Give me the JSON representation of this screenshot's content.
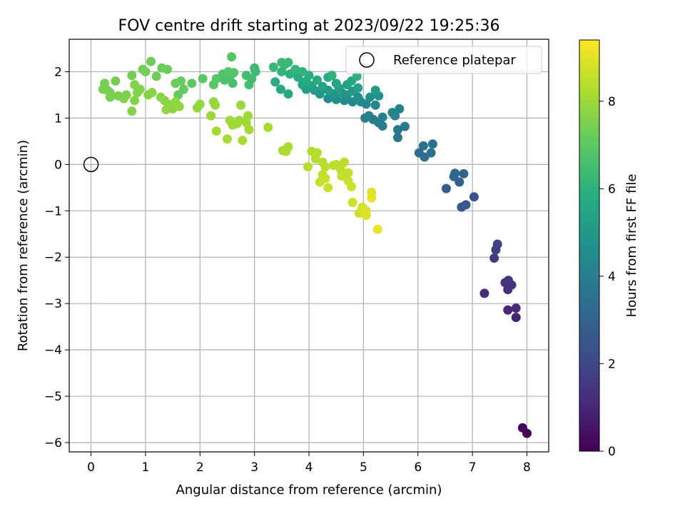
{
  "chart_data": {
    "type": "scatter",
    "title": "FOV centre drift starting at 2023/09/22 19:25:36",
    "xlabel": "Angular distance from reference (arcmin)",
    "ylabel": "Rotation from reference (arcmin)",
    "xlim": [
      -0.4,
      8.4
    ],
    "ylim": [
      -6.2,
      2.7
    ],
    "xticks": [
      0,
      1,
      2,
      3,
      4,
      5,
      6,
      7,
      8
    ],
    "yticks": [
      -6,
      -5,
      -4,
      -3,
      -2,
      -1,
      0,
      1,
      2
    ],
    "grid": true,
    "legend": {
      "position": "top-right",
      "entries": [
        "Reference platepar"
      ]
    },
    "reference_point": {
      "label": "Reference platepar",
      "x": 0,
      "y": 0
    },
    "colorbar": {
      "label": "Hours from first FF file",
      "colormap": "viridis",
      "range": [
        0,
        9.4
      ],
      "ticks": [
        0,
        2,
        4,
        6,
        8
      ]
    },
    "colors": {
      "grid": "#b0b0b0",
      "reference_marker": "#000000"
    },
    "points": [
      {
        "x": 8.0,
        "y": -5.8,
        "h": 0.05
      },
      {
        "x": 7.92,
        "y": -5.68,
        "h": 0.15
      },
      {
        "x": 7.8,
        "y": -3.3,
        "h": 0.9
      },
      {
        "x": 7.65,
        "y": -3.14,
        "h": 1.05
      },
      {
        "x": 7.8,
        "y": -3.1,
        "h": 1.1
      },
      {
        "x": 7.22,
        "y": -2.78,
        "h": 1.2
      },
      {
        "x": 7.65,
        "y": -2.7,
        "h": 1.3
      },
      {
        "x": 7.72,
        "y": -2.6,
        "h": 1.35
      },
      {
        "x": 7.6,
        "y": -2.55,
        "h": 1.4
      },
      {
        "x": 7.66,
        "y": -2.5,
        "h": 1.45
      },
      {
        "x": 7.4,
        "y": -2.02,
        "h": 1.6
      },
      {
        "x": 7.43,
        "y": -1.84,
        "h": 1.7
      },
      {
        "x": 7.46,
        "y": -1.72,
        "h": 1.8
      },
      {
        "x": 7.03,
        "y": -0.7,
        "h": 2.4
      },
      {
        "x": 6.88,
        "y": -0.87,
        "h": 2.5
      },
      {
        "x": 6.8,
        "y": -0.92,
        "h": 2.6
      },
      {
        "x": 6.52,
        "y": -0.52,
        "h": 2.8
      },
      {
        "x": 6.76,
        "y": -0.38,
        "h": 2.9
      },
      {
        "x": 6.66,
        "y": -0.26,
        "h": 3.0
      },
      {
        "x": 6.84,
        "y": -0.2,
        "h": 3.05
      },
      {
        "x": 6.68,
        "y": -0.19,
        "h": 3.1
      },
      {
        "x": 6.12,
        "y": 0.16,
        "h": 3.3
      },
      {
        "x": 6.02,
        "y": 0.25,
        "h": 3.35
      },
      {
        "x": 6.24,
        "y": 0.25,
        "h": 3.4
      },
      {
        "x": 6.1,
        "y": 0.4,
        "h": 3.45
      },
      {
        "x": 6.27,
        "y": 0.44,
        "h": 3.5
      },
      {
        "x": 5.63,
        "y": 0.58,
        "h": 3.7
      },
      {
        "x": 5.63,
        "y": 0.75,
        "h": 3.75
      },
      {
        "x": 5.76,
        "y": 0.82,
        "h": 3.8
      },
      {
        "x": 5.35,
        "y": 0.83,
        "h": 3.85
      },
      {
        "x": 5.28,
        "y": 0.9,
        "h": 3.9
      },
      {
        "x": 5.18,
        "y": 0.97,
        "h": 3.95
      },
      {
        "x": 5.03,
        "y": 1.0,
        "h": 4.0
      },
      {
        "x": 5.1,
        "y": 1.05,
        "h": 4.05
      },
      {
        "x": 5.35,
        "y": 1.02,
        "h": 4.1
      },
      {
        "x": 5.58,
        "y": 1.05,
        "h": 4.15
      },
      {
        "x": 5.53,
        "y": 1.12,
        "h": 4.2
      },
      {
        "x": 5.66,
        "y": 1.2,
        "h": 4.25
      },
      {
        "x": 5.22,
        "y": 1.28,
        "h": 4.3
      },
      {
        "x": 5.05,
        "y": 1.3,
        "h": 4.35
      },
      {
        "x": 4.95,
        "y": 1.35,
        "h": 4.4
      },
      {
        "x": 4.8,
        "y": 1.35,
        "h": 4.45
      },
      {
        "x": 4.65,
        "y": 1.38,
        "h": 4.5
      },
      {
        "x": 4.5,
        "y": 1.4,
        "h": 4.55
      },
      {
        "x": 4.35,
        "y": 1.42,
        "h": 4.6
      },
      {
        "x": 4.9,
        "y": 1.45,
        "h": 4.65
      },
      {
        "x": 5.12,
        "y": 1.45,
        "h": 4.7
      },
      {
        "x": 5.28,
        "y": 1.48,
        "h": 4.75
      },
      {
        "x": 4.7,
        "y": 1.5,
        "h": 4.8
      },
      {
        "x": 4.45,
        "y": 1.52,
        "h": 4.85
      },
      {
        "x": 4.2,
        "y": 1.52,
        "h": 4.9
      },
      {
        "x": 4.6,
        "y": 1.55,
        "h": 4.95
      },
      {
        "x": 4.8,
        "y": 1.58,
        "h": 5.0
      },
      {
        "x": 5.22,
        "y": 1.6,
        "h": 5.05
      },
      {
        "x": 4.35,
        "y": 1.6,
        "h": 5.1
      },
      {
        "x": 4.1,
        "y": 1.6,
        "h": 5.15
      },
      {
        "x": 3.95,
        "y": 1.62,
        "h": 5.2
      },
      {
        "x": 4.55,
        "y": 1.65,
        "h": 5.25
      },
      {
        "x": 4.9,
        "y": 1.65,
        "h": 5.3
      },
      {
        "x": 4.25,
        "y": 1.68,
        "h": 5.35
      },
      {
        "x": 4.7,
        "y": 1.72,
        "h": 5.4
      },
      {
        "x": 4.05,
        "y": 1.7,
        "h": 5.45
      },
      {
        "x": 3.88,
        "y": 1.72,
        "h": 5.5
      },
      {
        "x": 4.5,
        "y": 1.75,
        "h": 5.55
      },
      {
        "x": 4.78,
        "y": 1.8,
        "h": 5.6
      },
      {
        "x": 3.48,
        "y": 1.62,
        "h": 5.62
      },
      {
        "x": 3.62,
        "y": 1.52,
        "h": 5.64
      },
      {
        "x": 3.38,
        "y": 1.78,
        "h": 5.66
      },
      {
        "x": 3.95,
        "y": 1.8,
        "h": 5.7
      },
      {
        "x": 4.15,
        "y": 1.82,
        "h": 5.75
      },
      {
        "x": 4.35,
        "y": 1.88,
        "h": 5.8
      },
      {
        "x": 3.8,
        "y": 1.88,
        "h": 5.85
      },
      {
        "x": 4.0,
        "y": 1.92,
        "h": 5.9
      },
      {
        "x": 3.65,
        "y": 1.95,
        "h": 5.95
      },
      {
        "x": 4.88,
        "y": 1.9,
        "h": 5.98
      },
      {
        "x": 4.42,
        "y": 1.92,
        "h": 6.0
      },
      {
        "x": 3.88,
        "y": 2.0,
        "h": 6.05
      },
      {
        "x": 3.5,
        "y": 2.0,
        "h": 6.1
      },
      {
        "x": 3.75,
        "y": 2.05,
        "h": 6.15
      },
      {
        "x": 3.35,
        "y": 2.1,
        "h": 6.2
      },
      {
        "x": 3.55,
        "y": 2.15,
        "h": 6.25
      },
      {
        "x": 3.62,
        "y": 2.2,
        "h": 6.3
      },
      {
        "x": 3.5,
        "y": 2.2,
        "h": 6.32
      },
      {
        "x": 3.0,
        "y": 2.08,
        "h": 6.35
      },
      {
        "x": 3.02,
        "y": 2.0,
        "h": 6.4
      },
      {
        "x": 2.95,
        "y": 1.85,
        "h": 6.45
      },
      {
        "x": 2.85,
        "y": 1.92,
        "h": 6.5
      },
      {
        "x": 2.9,
        "y": 1.72,
        "h": 6.55
      },
      {
        "x": 2.6,
        "y": 1.75,
        "h": 6.6
      },
      {
        "x": 2.45,
        "y": 1.82,
        "h": 6.65
      },
      {
        "x": 2.55,
        "y": 1.9,
        "h": 6.7
      },
      {
        "x": 2.42,
        "y": 1.95,
        "h": 6.75
      },
      {
        "x": 2.62,
        "y": 1.98,
        "h": 6.8
      },
      {
        "x": 2.52,
        "y": 2.0,
        "h": 6.82
      },
      {
        "x": 2.58,
        "y": 2.32,
        "h": 6.85
      },
      {
        "x": 2.3,
        "y": 1.85,
        "h": 6.9
      },
      {
        "x": 2.25,
        "y": 1.72,
        "h": 6.95
      },
      {
        "x": 2.05,
        "y": 1.85,
        "h": 7.0
      },
      {
        "x": 1.85,
        "y": 1.75,
        "h": 7.05
      },
      {
        "x": 1.7,
        "y": 1.62,
        "h": 7.1
      },
      {
        "x": 1.6,
        "y": 1.5,
        "h": 7.15
      },
      {
        "x": 1.65,
        "y": 1.8,
        "h": 7.18
      },
      {
        "x": 1.55,
        "y": 1.75,
        "h": 7.2
      },
      {
        "x": 1.4,
        "y": 2.05,
        "h": 7.22
      },
      {
        "x": 1.3,
        "y": 2.08,
        "h": 7.25
      },
      {
        "x": 1.2,
        "y": 1.9,
        "h": 7.28
      },
      {
        "x": 1.1,
        "y": 2.22,
        "h": 7.3
      },
      {
        "x": 1.0,
        "y": 2.0,
        "h": 7.32
      },
      {
        "x": 0.95,
        "y": 2.05,
        "h": 7.34
      },
      {
        "x": 0.75,
        "y": 1.92,
        "h": 7.36
      },
      {
        "x": 0.45,
        "y": 1.8,
        "h": 7.38
      },
      {
        "x": 0.25,
        "y": 1.75,
        "h": 7.4
      },
      {
        "x": 0.3,
        "y": 1.6,
        "h": 7.42
      },
      {
        "x": 0.22,
        "y": 1.62,
        "h": 7.44
      },
      {
        "x": 0.35,
        "y": 1.55,
        "h": 7.46
      },
      {
        "x": 0.5,
        "y": 1.48,
        "h": 7.48
      },
      {
        "x": 0.35,
        "y": 1.45,
        "h": 7.5
      },
      {
        "x": 0.6,
        "y": 1.42,
        "h": 7.52
      },
      {
        "x": 0.65,
        "y": 1.5,
        "h": 7.54
      },
      {
        "x": 0.8,
        "y": 1.72,
        "h": 7.56
      },
      {
        "x": 0.85,
        "y": 1.55,
        "h": 7.58
      },
      {
        "x": 0.9,
        "y": 1.62,
        "h": 7.6
      },
      {
        "x": 0.8,
        "y": 1.38,
        "h": 7.62
      },
      {
        "x": 0.75,
        "y": 1.15,
        "h": 7.64
      },
      {
        "x": 1.05,
        "y": 1.5,
        "h": 7.66
      },
      {
        "x": 1.12,
        "y": 1.55,
        "h": 7.68
      },
      {
        "x": 1.28,
        "y": 1.45,
        "h": 7.7
      },
      {
        "x": 1.35,
        "y": 1.38,
        "h": 7.72
      },
      {
        "x": 1.42,
        "y": 1.3,
        "h": 7.74
      },
      {
        "x": 1.5,
        "y": 1.2,
        "h": 7.76
      },
      {
        "x": 1.38,
        "y": 1.18,
        "h": 7.78
      },
      {
        "x": 1.55,
        "y": 1.35,
        "h": 7.8
      },
      {
        "x": 1.62,
        "y": 1.25,
        "h": 7.82
      },
      {
        "x": 1.95,
        "y": 1.22,
        "h": 7.84
      },
      {
        "x": 2.0,
        "y": 1.3,
        "h": 7.86
      },
      {
        "x": 2.25,
        "y": 1.35,
        "h": 7.88
      },
      {
        "x": 2.28,
        "y": 1.28,
        "h": 7.9
      },
      {
        "x": 2.75,
        "y": 1.28,
        "h": 7.92
      },
      {
        "x": 2.2,
        "y": 1.05,
        "h": 7.94
      },
      {
        "x": 2.55,
        "y": 0.95,
        "h": 7.96
      },
      {
        "x": 2.72,
        "y": 0.95,
        "h": 7.98
      },
      {
        "x": 2.68,
        "y": 0.88,
        "h": 8.0
      },
      {
        "x": 2.6,
        "y": 0.85,
        "h": 8.02
      },
      {
        "x": 2.88,
        "y": 1.05,
        "h": 8.04
      },
      {
        "x": 2.85,
        "y": 0.9,
        "h": 8.06
      },
      {
        "x": 2.9,
        "y": 0.75,
        "h": 8.08
      },
      {
        "x": 2.3,
        "y": 0.72,
        "h": 8.1
      },
      {
        "x": 2.5,
        "y": 0.55,
        "h": 8.12
      },
      {
        "x": 2.78,
        "y": 0.52,
        "h": 8.14
      },
      {
        "x": 3.25,
        "y": 0.8,
        "h": 8.16
      },
      {
        "x": 3.52,
        "y": 0.3,
        "h": 8.2
      },
      {
        "x": 3.62,
        "y": 0.38,
        "h": 8.22
      },
      {
        "x": 3.58,
        "y": 0.28,
        "h": 8.24
      },
      {
        "x": 4.05,
        "y": 0.28,
        "h": 8.3
      },
      {
        "x": 4.15,
        "y": 0.25,
        "h": 8.32
      },
      {
        "x": 4.12,
        "y": 0.12,
        "h": 8.34
      },
      {
        "x": 3.98,
        "y": -0.05,
        "h": 8.36
      },
      {
        "x": 4.25,
        "y": 0.05,
        "h": 8.38
      },
      {
        "x": 4.3,
        "y": -0.05,
        "h": 8.4
      },
      {
        "x": 4.45,
        "y": -0.02,
        "h": 8.42
      },
      {
        "x": 4.5,
        "y": 0.0,
        "h": 8.44
      },
      {
        "x": 4.58,
        "y": -0.1,
        "h": 8.46
      },
      {
        "x": 4.65,
        "y": 0.05,
        "h": 8.48
      },
      {
        "x": 4.72,
        "y": -0.18,
        "h": 8.5
      },
      {
        "x": 4.6,
        "y": -0.25,
        "h": 8.52
      },
      {
        "x": 4.25,
        "y": -0.22,
        "h": 8.54
      },
      {
        "x": 4.3,
        "y": -0.3,
        "h": 8.56
      },
      {
        "x": 4.2,
        "y": -0.38,
        "h": 8.58
      },
      {
        "x": 4.35,
        "y": -0.5,
        "h": 8.6
      },
      {
        "x": 4.72,
        "y": -0.35,
        "h": 8.62
      },
      {
        "x": 4.78,
        "y": -0.48,
        "h": 8.64
      },
      {
        "x": 4.8,
        "y": -0.82,
        "h": 8.7
      },
      {
        "x": 4.98,
        "y": -0.92,
        "h": 8.75
      },
      {
        "x": 4.92,
        "y": -1.05,
        "h": 8.8
      },
      {
        "x": 5.05,
        "y": -1.0,
        "h": 8.85
      },
      {
        "x": 5.05,
        "y": -1.1,
        "h": 8.9
      },
      {
        "x": 5.15,
        "y": -0.6,
        "h": 8.95
      },
      {
        "x": 5.15,
        "y": -0.72,
        "h": 9.0
      },
      {
        "x": 5.26,
        "y": -1.4,
        "h": 9.1
      }
    ]
  }
}
